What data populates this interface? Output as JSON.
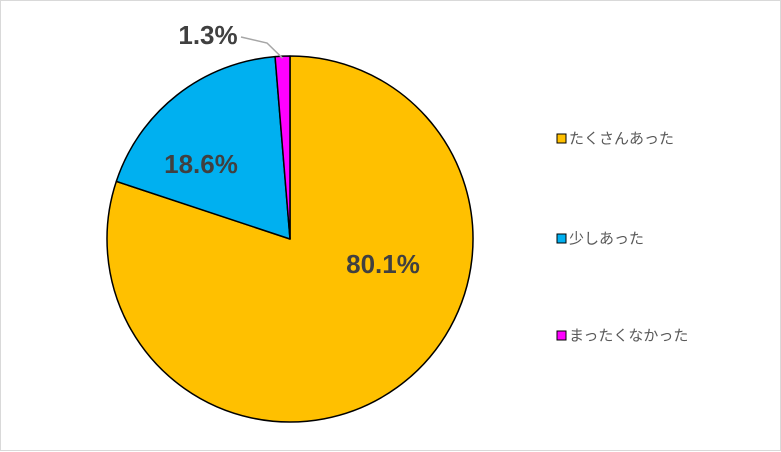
{
  "chart_data": {
    "type": "pie",
    "categories": [
      "たくさんあった",
      "少しあった",
      "まったくなかった"
    ],
    "values": [
      80.1,
      18.6,
      1.3
    ],
    "labels": [
      "80.1%",
      "18.6%",
      "1.3%"
    ],
    "colors": [
      "#FFC000",
      "#00B0F0",
      "#FF00FF"
    ],
    "legend_position": "right",
    "title": ""
  }
}
